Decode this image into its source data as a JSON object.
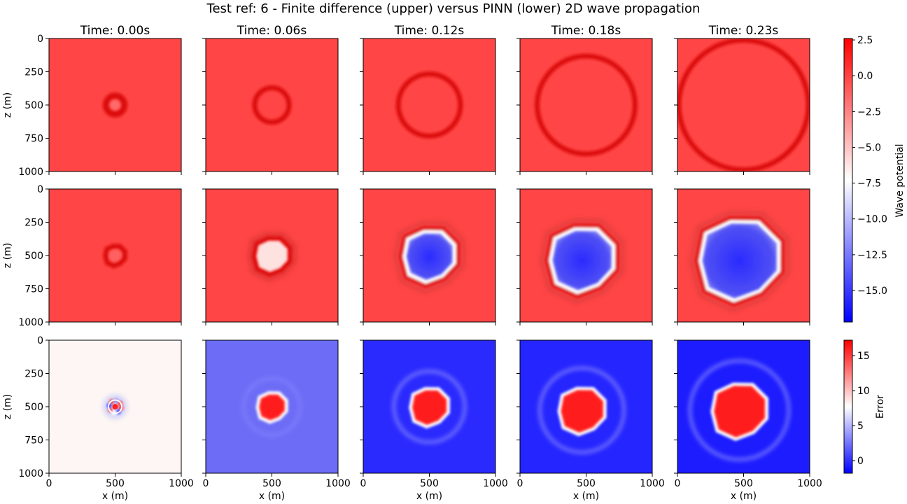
{
  "figure": {
    "title": "Test ref: 6 - Finite difference (upper) versus PINN (lower) 2D wave propagation"
  },
  "colors": {
    "background_red": "#ff4545",
    "ring_red": "#dc1010",
    "white": "#ffffff",
    "blue": "#0000ff",
    "error_bg_0": "#fdf6f4",
    "error_bg_1": "#6c6cf6",
    "error_bg_2": "#2a2aff",
    "error_bg_3": "#2525ff",
    "error_bg_4": "#1c1cff"
  },
  "chart_data": {
    "type": "heatmap",
    "title": "Test ref: 6 - Finite difference (upper) versus PINN (lower) 2D wave propagation",
    "columns": [
      "Time: 0.00s",
      "Time: 0.06s",
      "Time: 0.12s",
      "Time: 0.18s",
      "Time: 0.23s"
    ],
    "rows": [
      "Finite difference",
      "PINN",
      "Error"
    ],
    "x": {
      "label": "x (m)",
      "lim": [
        0,
        1000
      ],
      "ticks": [
        "0",
        "500",
        "1000"
      ]
    },
    "z": {
      "label": "z (m)",
      "lim": [
        1000,
        0
      ],
      "ticks": [
        "0",
        "250",
        "500",
        "750",
        "1000"
      ]
    },
    "colorbar_wave": {
      "label": "Wave potential",
      "range": [
        -17.2,
        2.6
      ],
      "ticks": [
        "2.5",
        "0.0",
        "−2.5",
        "−5.0",
        "−7.5",
        "−10.0",
        "−12.5",
        "−15.0"
      ]
    },
    "colorbar_error": {
      "label": "Error",
      "range": [
        -1.8,
        17.2
      ],
      "ticks": [
        "15",
        "10",
        "5",
        "0"
      ]
    },
    "fd_ring_radius_m": [
      70,
      130,
      235,
      370,
      490
    ],
    "pinn_blob_radius_m": [
      75,
      140,
      200,
      250,
      310
    ],
    "error_peak_radius_m": [
      100,
      160,
      215,
      265,
      320
    ]
  }
}
